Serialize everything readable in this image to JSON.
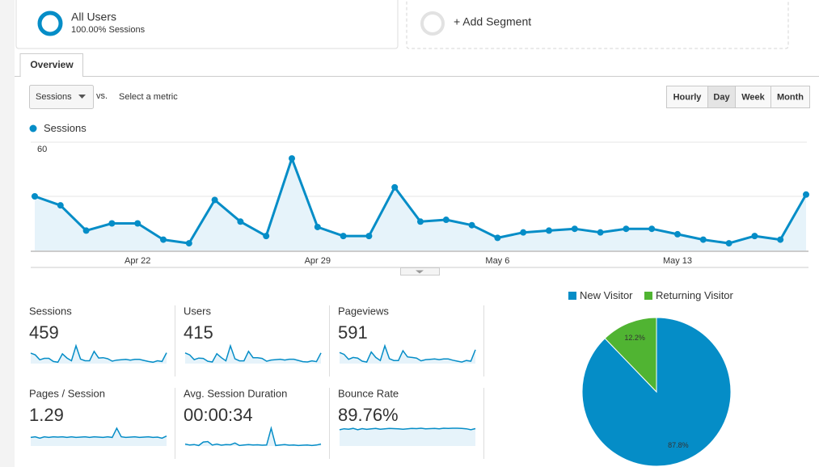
{
  "segments": [
    {
      "title": "All Users",
      "subtitle": "100.00% Sessions"
    },
    {
      "title": "+ Add Segment"
    }
  ],
  "tabs": [
    "Overview"
  ],
  "controls": {
    "metric": "Sessions",
    "vs": "vs.",
    "select_metric": "Select a metric",
    "intervals": [
      "Hourly",
      "Day",
      "Week",
      "Month"
    ],
    "active_interval": 1
  },
  "chart_data": [
    {
      "type": "line",
      "categories": [
        null,
        null,
        null,
        null,
        "Apr 22",
        null,
        null,
        null,
        null,
        null,
        null,
        "Apr 29",
        null,
        null,
        null,
        null,
        null,
        null,
        "May 6",
        null,
        null,
        null,
        null,
        null,
        null,
        "May 13",
        null,
        null,
        null,
        null,
        null
      ],
      "series": [
        {
          "name": "Sessions",
          "color": "#058dc7",
          "values": [
            30,
            25,
            11,
            15,
            15,
            6,
            4,
            28,
            16,
            8,
            51,
            13,
            8,
            8,
            35,
            16,
            17,
            14,
            7,
            10,
            11,
            12,
            10,
            12,
            12,
            9,
            6,
            4,
            8,
            6,
            31
          ]
        }
      ],
      "ylim": [
        0,
        60
      ],
      "yticks": [
        30,
        60
      ],
      "grid": true
    },
    {
      "type": "pie",
      "categories": [
        "New Visitor",
        "Returning Visitor"
      ],
      "values": [
        87.8,
        12.2
      ],
      "value_labels": [
        "87.8%",
        "12.2%"
      ],
      "colors": [
        "#058dc7",
        "#50b432"
      ]
    }
  ],
  "metrics": [
    {
      "label": "Sessions",
      "value": "459"
    },
    {
      "label": "Users",
      "value": "415",
      "sparkline": [
        27,
        22,
        10,
        14,
        13,
        6,
        4,
        25,
        15,
        7,
        45,
        12,
        7,
        7,
        31,
        15,
        15,
        13,
        6,
        9,
        10,
        11,
        9,
        11,
        11,
        8,
        5,
        4,
        7,
        5,
        27
      ]
    },
    {
      "label": "Pageviews",
      "value": "591",
      "sparkline": [
        36,
        30,
        14,
        20,
        18,
        8,
        5,
        38,
        20,
        10,
        58,
        16,
        10,
        10,
        42,
        22,
        20,
        18,
        9,
        13,
        14,
        15,
        13,
        15,
        15,
        11,
        8,
        5,
        10,
        8,
        45
      ]
    },
    {
      "label": "Pages / Session",
      "value": "1.29",
      "sparkline": [
        1.2,
        1.3,
        1.1,
        1.3,
        1.2,
        1.3,
        1.25,
        1.3,
        1.2,
        1.3,
        1.2,
        1.25,
        1.3,
        1.2,
        1.3,
        1.25,
        1.2,
        1.3,
        1.2,
        2.5,
        1.3,
        1.2,
        1.25,
        1.3,
        1.2,
        1.25,
        1.3,
        1.2,
        1.25,
        1.1,
        1.4
      ]
    },
    {
      "label": "Avg. Session Duration",
      "value": "00:00:34",
      "sparkline": [
        20,
        10,
        15,
        5,
        40,
        45,
        10,
        20,
        8,
        15,
        12,
        30,
        5,
        10,
        15,
        10,
        12,
        8,
        10,
        180,
        5,
        10,
        15,
        8,
        10,
        5,
        8,
        10,
        5,
        10,
        20
      ]
    },
    {
      "label": "Bounce Rate",
      "value": "89.76%",
      "sparkline": [
        85,
        90,
        88,
        92,
        85,
        91,
        87,
        90,
        92,
        88,
        90,
        92,
        91,
        90,
        88,
        90,
        92,
        91,
        93,
        90,
        91,
        92,
        90,
        93,
        92,
        93,
        93,
        92,
        90,
        85,
        91
      ]
    }
  ]
}
